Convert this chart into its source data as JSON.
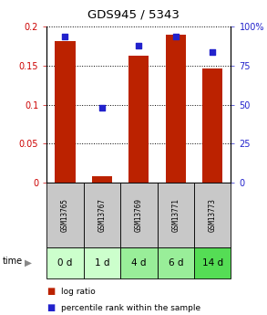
{
  "title": "GDS945 / 5343",
  "samples": [
    "GSM13765",
    "GSM13767",
    "GSM13769",
    "GSM13771",
    "GSM13773"
  ],
  "time_labels": [
    "0 d",
    "1 d",
    "4 d",
    "6 d",
    "14 d"
  ],
  "log_ratio": [
    0.182,
    0.008,
    0.163,
    0.19,
    0.146
  ],
  "percentile_rank": [
    94,
    48,
    88,
    94,
    84
  ],
  "bar_color": "#bb2200",
  "dot_color": "#2222cc",
  "ylim_left": [
    0,
    0.2
  ],
  "ylim_right": [
    0,
    100
  ],
  "yticks_left": [
    0,
    0.05,
    0.1,
    0.15,
    0.2
  ],
  "ytick_labels_left": [
    "0",
    "0.05",
    "0.1",
    "0.15",
    "0.2"
  ],
  "yticks_right": [
    0,
    25,
    50,
    75,
    100
  ],
  "ytick_labels_right": [
    "0",
    "25",
    "50",
    "75",
    "100%"
  ],
  "bg_color": "#ffffff",
  "sample_label_bg": "#c8c8c8",
  "time_row_colors": [
    "#ccffcc",
    "#ccffcc",
    "#99ee99",
    "#99ee99",
    "#55dd55"
  ],
  "bar_width": 0.55,
  "legend_items": [
    "log ratio",
    "percentile rank within the sample"
  ]
}
